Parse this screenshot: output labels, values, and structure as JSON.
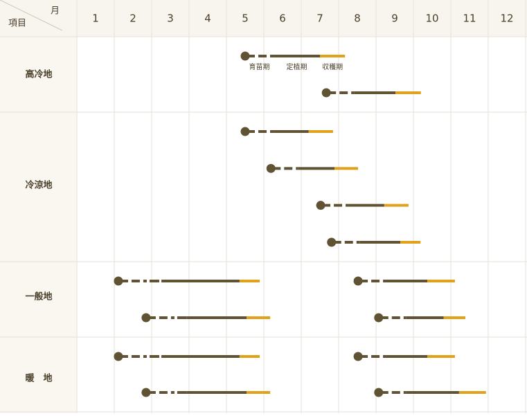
{
  "header": {
    "item": "項目",
    "month": "月",
    "months": [
      1,
      2,
      3,
      4,
      5,
      6,
      7,
      8,
      9,
      10,
      11,
      12
    ]
  },
  "phase_labels": [
    "育苗期",
    "定植期",
    "収穫期"
  ],
  "rows": [
    {
      "label": "高冷地",
      "lanes": [
        [
          {
            "sow": 5.5,
            "plant": 6.26,
            "harvest": 7.5,
            "end": 8.17
          }
        ],
        [
          {
            "sow": 7.67,
            "plant": 8.41,
            "harvest": 9.52,
            "end": 10.2
          }
        ]
      ]
    },
    {
      "label": "冷涼地",
      "lanes": [
        [
          {
            "sow": 5.5,
            "plant": 6.26,
            "harvest": 7.2,
            "end": 7.85
          }
        ],
        [
          {
            "sow": 6.19,
            "plant": 6.91,
            "harvest": 7.89,
            "end": 8.52
          }
        ],
        [
          {
            "sow": 7.52,
            "plant": 8.26,
            "harvest": 9.22,
            "end": 9.87
          }
        ],
        [
          {
            "sow": 7.81,
            "plant": 8.56,
            "harvest": 9.65,
            "end": 10.19
          }
        ]
      ]
    },
    {
      "label": "一般地",
      "lanes": [
        [
          {
            "sow": 2.11,
            "plant": 3.26,
            "harvest": 5.35,
            "end": 5.89
          },
          {
            "sow": 8.52,
            "plant": 9.26,
            "harvest": 10.37,
            "end": 11.11
          }
        ],
        [
          {
            "sow": 2.85,
            "plant": 3.94,
            "harvest": 5.54,
            "end": 6.17
          },
          {
            "sow": 9.07,
            "plant": 9.81,
            "harvest": 10.81,
            "end": 11.39
          }
        ]
      ]
    },
    {
      "label": "暖　地",
      "lanes": [
        [
          {
            "sow": 2.11,
            "plant": 3.26,
            "harvest": 5.35,
            "end": 5.89
          },
          {
            "sow": 8.52,
            "plant": 9.26,
            "harvest": 10.37,
            "end": 11.11
          }
        ],
        [
          {
            "sow": 2.85,
            "plant": 3.94,
            "harvest": 5.54,
            "end": 6.17
          },
          {
            "sow": 9.07,
            "plant": 9.81,
            "harvest": 11.22,
            "end": 11.94
          }
        ]
      ]
    }
  ]
}
